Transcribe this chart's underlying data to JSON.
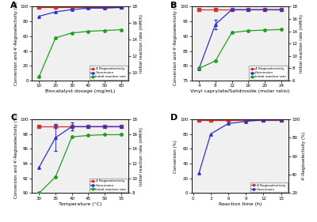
{
  "A": {
    "xlabel": "Biocatalyst dosage (mg/mL)",
    "x": [
      10,
      20,
      30,
      40,
      50,
      60
    ],
    "regioselectivity": [
      99,
      99,
      99,
      99,
      99,
      99
    ],
    "conversion": [
      87,
      93,
      96,
      98,
      98,
      99
    ],
    "reaction_rate": [
      9.5,
      14.2,
      14.8,
      15.0,
      15.1,
      15.2
    ],
    "ylim_left": [
      0,
      100
    ],
    "ylim_right": [
      9,
      18
    ],
    "yticks_left": [
      0,
      20,
      40,
      60,
      80,
      100
    ],
    "yticks_right": [
      10,
      12,
      14,
      16,
      18
    ],
    "xticks": [
      10,
      20,
      30,
      40,
      50,
      60
    ],
    "has_rate": true,
    "ylabel_left": "Conversion and 4'-Regioselectivity (%)",
    "ylabel_right": "Initial reaction rate (mM/h)"
  },
  "B": {
    "xlabel": "Vinyl caprylate/Salidroside (molar ratio)",
    "x": [
      4,
      8,
      12,
      16,
      20,
      24
    ],
    "regioselectivity": [
      99,
      99,
      99,
      99,
      99,
      99
    ],
    "conversion": [
      79,
      94,
      99,
      99,
      99,
      99
    ],
    "reaction_rate": [
      8.0,
      9.2,
      13.8,
      14.1,
      14.2,
      14.3
    ],
    "ylim_left": [
      75,
      100
    ],
    "ylim_right": [
      6,
      18
    ],
    "yticks_left": [
      75,
      80,
      85,
      90,
      95,
      100
    ],
    "yticks_right": [
      6,
      8,
      10,
      12,
      14,
      16,
      18
    ],
    "xticks": [
      4,
      8,
      12,
      16,
      20,
      24
    ],
    "has_rate": true,
    "ylabel_left": "Conversion and 4'-Regioselectivity (%)",
    "ylabel_right": "Initial reaction rate (mM/h)"
  },
  "C": {
    "xlabel": "Temperature (°C)",
    "x": [
      30,
      35,
      40,
      45,
      50,
      55
    ],
    "regioselectivity": [
      99,
      99,
      99,
      99,
      99,
      99
    ],
    "conversion": [
      93.5,
      97.5,
      99,
      99,
      99,
      99
    ],
    "reaction_rate": [
      8.0,
      10.2,
      15.6,
      15.8,
      15.9,
      15.9
    ],
    "ylim_left": [
      90,
      100
    ],
    "ylim_right": [
      8,
      18
    ],
    "yticks_left": [
      90,
      92,
      94,
      96,
      98,
      100
    ],
    "yticks_right": [
      8,
      10,
      12,
      14,
      16,
      18
    ],
    "xticks": [
      30,
      35,
      40,
      45,
      50,
      55
    ],
    "has_rate": true,
    "ylabel_left": "Conversion and 4'-Regioselectivity (%)",
    "ylabel_right": "Initial reaction rate (mM/h)"
  },
  "D": {
    "xlabel": "Reaction time (h)",
    "x": [
      1,
      3,
      6,
      9,
      12,
      15
    ],
    "regioselectivity": [
      99,
      99,
      99,
      99,
      99,
      99
    ],
    "conversion": [
      27,
      80,
      94,
      97,
      99,
      99
    ],
    "reaction_rate": [],
    "ylim_left": [
      0,
      100
    ],
    "ylim_right": [
      20,
      100
    ],
    "yticks_left": [
      0,
      20,
      40,
      60,
      80,
      100
    ],
    "yticks_right": [
      20,
      40,
      60,
      80,
      100
    ],
    "xticks": [
      0,
      3,
      6,
      9,
      12,
      15
    ],
    "has_rate": false,
    "ylabel_left": "Conversion (%)",
    "ylabel_right": "4'-Regioselectivity (%)"
  },
  "color_regio": "#d43030",
  "color_conv": "#3030cc",
  "color_rate": "#20a020",
  "bg_color": "#f0f0f0",
  "panel_labels": [
    "A",
    "B",
    "C",
    "D"
  ],
  "legend_labels_3": [
    "4'-Regioselectivity",
    "Conversion",
    "Initial reaction rate"
  ],
  "legend_labels_2": [
    "4'-Regioselectivity",
    "Conversion"
  ]
}
